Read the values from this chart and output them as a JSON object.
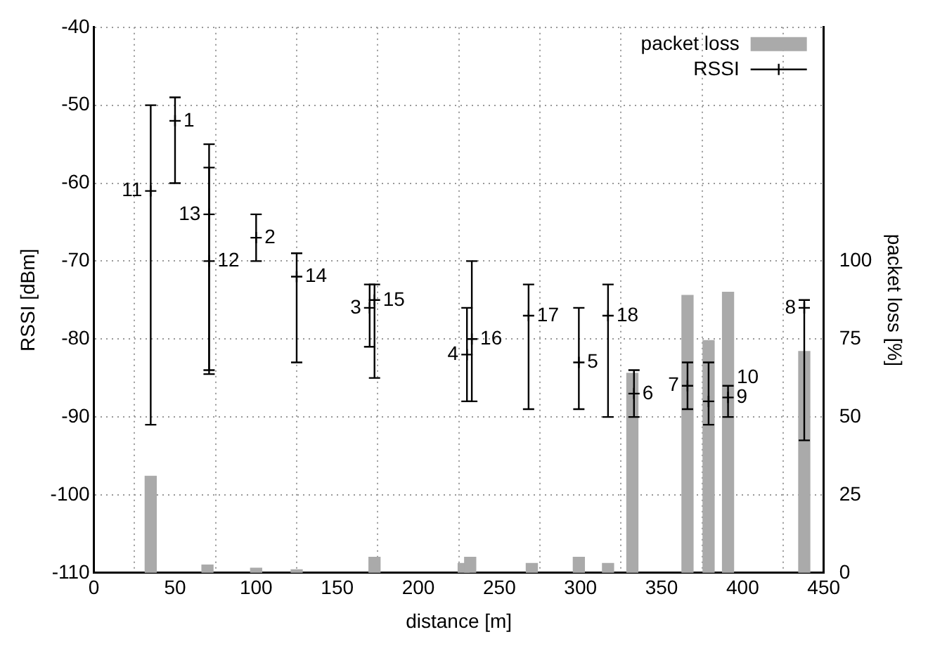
{
  "chart_data": {
    "type": "scatter",
    "xlabel": "distance [m]",
    "ylabel": "RSSI [dBm]",
    "y2label": "packet loss [%]",
    "xlim": [
      0,
      450
    ],
    "xticks": [
      0,
      50,
      100,
      150,
      200,
      250,
      300,
      350,
      400,
      450
    ],
    "ylim": [
      -110,
      -40
    ],
    "yticks": [
      -110,
      -100,
      -90,
      -80,
      -70,
      -60,
      -50,
      -40
    ],
    "y2lim": [
      0,
      175
    ],
    "y2ticks": [
      0,
      25,
      50,
      75,
      100
    ],
    "grid": true,
    "legend": "top right",
    "marker": "cross",
    "series": [
      {
        "name": "packet loss",
        "type": "bar",
        "axis": "y2",
        "color": "#aaaaaa",
        "x": [
          35,
          70,
          100,
          125,
          173,
          228,
          232,
          270,
          299,
          317,
          332,
          366,
          379,
          391,
          438
        ],
        "values": [
          31,
          2.5,
          1.5,
          1,
          5,
          3,
          5,
          3,
          5,
          3,
          64,
          89,
          74.5,
          90,
          71
        ]
      },
      {
        "name": "RSSI",
        "color": "#000000",
        "x": [
          50,
          100,
          170,
          230,
          299,
          333,
          366,
          438,
          391,
          379,
          35,
          71,
          71,
          125,
          173,
          233,
          268,
          317
        ],
        "values": [
          -52,
          -67,
          -76,
          -82,
          -83,
          -87,
          -86,
          -76,
          -87.5,
          -88,
          -61,
          -70,
          -64,
          -72,
          -75,
          -80,
          -77,
          -77
        ],
        "errors": [
          [
            -60,
            -49
          ],
          [
            -70,
            -64
          ],
          [
            -81,
            -73
          ],
          [
            -88,
            -76
          ],
          [
            -89,
            -76
          ],
          [
            -90,
            -84
          ],
          [
            -89,
            -83
          ],
          [
            -93,
            -75
          ],
          [
            -90,
            -86
          ],
          [
            -91,
            -83
          ],
          [
            -91,
            -50
          ],
          [
            -84.5,
            -58
          ],
          [
            -84,
            -55
          ],
          [
            -83,
            -69
          ],
          [
            -85,
            -73
          ],
          [
            -88,
            -70
          ],
          [
            -89,
            -73
          ],
          [
            -90,
            -73
          ]
        ]
      }
    ],
    "annotations": [
      {
        "text": "1",
        "x": 50,
        "y": -52
      },
      {
        "text": "2",
        "x": 100,
        "y": -67
      },
      {
        "text": "3",
        "x": 170,
        "y": -76
      },
      {
        "text": "4",
        "x": 230,
        "y": -82
      },
      {
        "text": "5",
        "x": 299,
        "y": -83
      },
      {
        "text": "6",
        "x": 333,
        "y": -87
      },
      {
        "text": "7",
        "x": 366,
        "y": -86
      },
      {
        "text": "8",
        "x": 438,
        "y": -76
      },
      {
        "text": "9",
        "x": 391,
        "y": -87.5
      },
      {
        "text": "10",
        "x": 379,
        "y": -88
      },
      {
        "text": "11",
        "x": 35,
        "y": -61
      },
      {
        "text": "12",
        "x": 71,
        "y": -70
      },
      {
        "text": "13",
        "x": 71,
        "y": -64
      },
      {
        "text": "14",
        "x": 125,
        "y": -72
      },
      {
        "text": "15",
        "x": 173,
        "y": -75
      },
      {
        "text": "16",
        "x": 233,
        "y": -80
      },
      {
        "text": "17",
        "x": 268,
        "y": -77
      },
      {
        "text": "18",
        "x": 317,
        "y": -77
      }
    ]
  }
}
